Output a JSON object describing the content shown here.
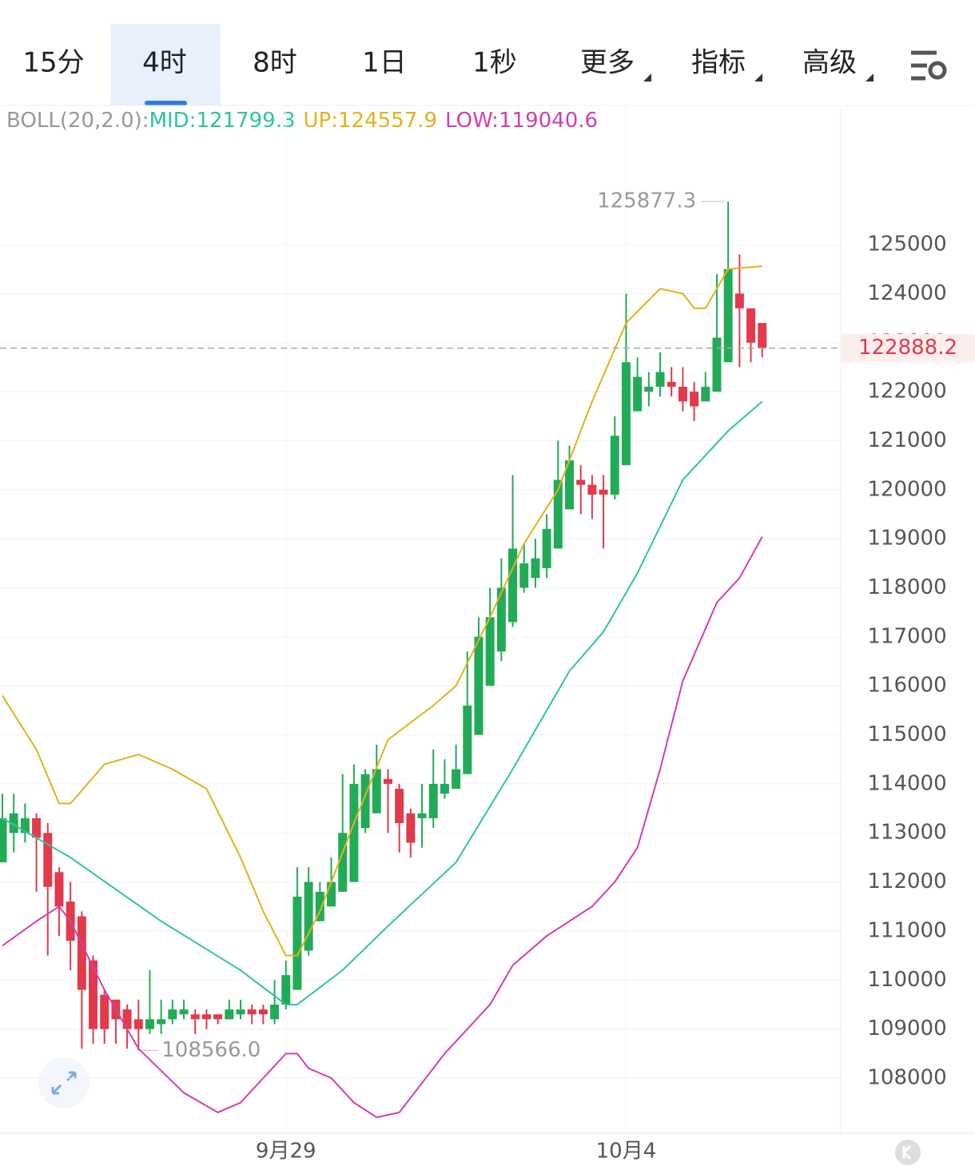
{
  "tabs": [
    "15分",
    "4时",
    "8时",
    "1日",
    "1秒",
    "更多",
    "指标",
    "高级"
  ],
  "selected_tab": 1,
  "legend": {
    "label": "BOLL(20,2.0):",
    "items": [
      {
        "text": "MID:121799.3",
        "color": "#2ec4a0"
      },
      {
        "text": "UP:124557.9",
        "color": "#e3b21a"
      },
      {
        "text": "LOW:119040.6",
        "color": "#d33fae"
      }
    ]
  },
  "chart_data": {
    "type": "candlestick",
    "categories": [
      null,
      null,
      null,
      null,
      null,
      null,
      null,
      null,
      null,
      null,
      null,
      null,
      null,
      null,
      null,
      null,
      null,
      null,
      null,
      null,
      null,
      null,
      null,
      null,
      null,
      "9月29",
      null,
      null,
      null,
      null,
      null,
      null,
      null,
      null,
      null,
      null,
      null,
      null,
      null,
      null,
      null,
      null,
      null,
      null,
      null,
      null,
      null,
      null,
      null,
      null,
      null,
      null,
      null,
      null,
      null,
      "10月4",
      null,
      null,
      null,
      null,
      null,
      null,
      null,
      null,
      null,
      null,
      null,
      null
    ],
    "open": [
      112400,
      113000,
      113000,
      113300,
      113000,
      112200,
      111600,
      111300,
      110400,
      109700,
      109600,
      109400,
      109200,
      109000,
      109100,
      109200,
      109300,
      109300,
      109300,
      109300,
      109200,
      109300,
      109400,
      109400,
      109200,
      109500,
      109800,
      110600,
      111200,
      111500,
      111800,
      112000,
      113100,
      113400,
      114100,
      113900,
      113400,
      113300,
      113300,
      113800,
      113900,
      114200,
      115000,
      116000,
      116700,
      117300,
      118000,
      118200,
      118400,
      118800,
      119600,
      120200,
      120100,
      120000,
      119900,
      120500,
      121600,
      122000,
      122100,
      122200,
      122100,
      122000,
      121800,
      122000,
      122600,
      124000,
      123700,
      123400
    ],
    "high": [
      113800,
      113800,
      113600,
      113400,
      113200,
      112300,
      112000,
      111400,
      110500,
      109800,
      109600,
      109500,
      109600,
      110200,
      109600,
      109600,
      109600,
      109400,
      109400,
      109300,
      109600,
      109600,
      109500,
      109500,
      110000,
      110400,
      112300,
      112300,
      112000,
      112500,
      114200,
      114400,
      114300,
      114800,
      114300,
      114000,
      113500,
      114000,
      114700,
      114500,
      114800,
      116700,
      117400,
      118000,
      118600,
      120300,
      118900,
      119000,
      119500,
      121000,
      120900,
      120500,
      120300,
      120300,
      121500,
      124000,
      122700,
      122400,
      122800,
      122500,
      122500,
      122200,
      122400,
      124400,
      125877.3,
      124800,
      123700,
      123400
    ],
    "low": [
      112400,
      112600,
      112800,
      111800,
      110500,
      110900,
      110200,
      108600,
      108700,
      108700,
      108700,
      108600,
      108566,
      108900,
      108900,
      109100,
      109200,
      108900,
      109000,
      109100,
      109200,
      109200,
      109100,
      109100,
      109100,
      109400,
      109800,
      110500,
      111200,
      111500,
      111800,
      112000,
      113000,
      113400,
      113000,
      112600,
      112500,
      112700,
      113100,
      113700,
      113900,
      114200,
      115000,
      116000,
      116500,
      117200,
      117900,
      118000,
      118200,
      118800,
      119600,
      119500,
      119400,
      118800,
      119800,
      120500,
      121600,
      121700,
      121900,
      121900,
      121600,
      121400,
      121800,
      122000,
      122600,
      122500,
      122600,
      122700
    ],
    "close": [
      113300,
      113400,
      113300,
      112900,
      111900,
      111500,
      110800,
      109800,
      109000,
      109000,
      109200,
      109000,
      109000,
      109200,
      109200,
      109400,
      109400,
      109200,
      109200,
      109200,
      109400,
      109400,
      109300,
      109300,
      109500,
      110100,
      111700,
      112000,
      111800,
      112000,
      113000,
      114000,
      114200,
      114300,
      114000,
      113200,
      112800,
      113400,
      114000,
      114000,
      114300,
      115600,
      117000,
      117400,
      118000,
      118800,
      118500,
      118600,
      119200,
      120200,
      120600,
      120100,
      119900,
      119900,
      121100,
      122600,
      122300,
      122100,
      122400,
      122100,
      121800,
      121700,
      122100,
      123100,
      124500,
      123700,
      123000,
      122888.2
    ],
    "up_color": "#22ab57",
    "down_color": "#e23a4c",
    "bands": [
      {
        "name": "UP",
        "color": "#e3b21a",
        "x": [
          0,
          3,
          5,
          6,
          9,
          12,
          15,
          18,
          21,
          23,
          25,
          26,
          28,
          31,
          34,
          38,
          40,
          43,
          46,
          49,
          52,
          55,
          58,
          60,
          61,
          62,
          64,
          67
        ],
        "values": [
          115800,
          114700,
          113600,
          113600,
          114400,
          114600,
          114300,
          113900,
          112500,
          111400,
          110500,
          110500,
          111400,
          113200,
          114900,
          115600,
          116000,
          117400,
          118900,
          120000,
          121800,
          123400,
          124100,
          124000,
          123700,
          123700,
          124500,
          124557.9
        ]
      },
      {
        "name": "MID",
        "color": "#2ec4a0",
        "x": [
          0,
          6,
          14,
          21,
          25,
          26,
          30,
          34,
          40,
          45,
          50,
          53,
          56,
          60,
          64,
          67
        ],
        "values": [
          113300,
          112500,
          111200,
          110200,
          109500,
          109500,
          110200,
          111100,
          112400,
          114300,
          116300,
          117100,
          118300,
          120200,
          121200,
          121799.3
        ]
      },
      {
        "name": "LOW",
        "color": "#d33fae",
        "x": [
          0,
          3,
          5,
          6,
          9,
          12,
          16,
          19,
          21,
          25,
          26,
          27,
          29,
          31,
          33,
          35,
          39,
          43,
          45,
          48,
          52,
          54,
          56,
          58,
          60,
          63,
          65,
          67
        ],
        "values": [
          110700,
          111200,
          111500,
          111200,
          109800,
          108600,
          107700,
          107300,
          107500,
          108500,
          108500,
          108200,
          108000,
          107500,
          107200,
          107300,
          108500,
          109500,
          110300,
          110900,
          111500,
          112000,
          112700,
          114300,
          116100,
          117700,
          118200,
          119040.6
        ]
      }
    ],
    "ylim": [
      106900,
      127500
    ],
    "yticks": [
      108000,
      109000,
      110000,
      111000,
      112000,
      113000,
      114000,
      115000,
      116000,
      117000,
      118000,
      119000,
      120000,
      121000,
      122000,
      123000,
      124000,
      125000
    ],
    "grid": true,
    "last_price": 122888.2,
    "max_annotation": {
      "index": 64,
      "value": 125877.3
    },
    "min_annotation": {
      "index": 12,
      "value": {
        "value": 108566,
        "label": "108566.0"
      }
    }
  }
}
